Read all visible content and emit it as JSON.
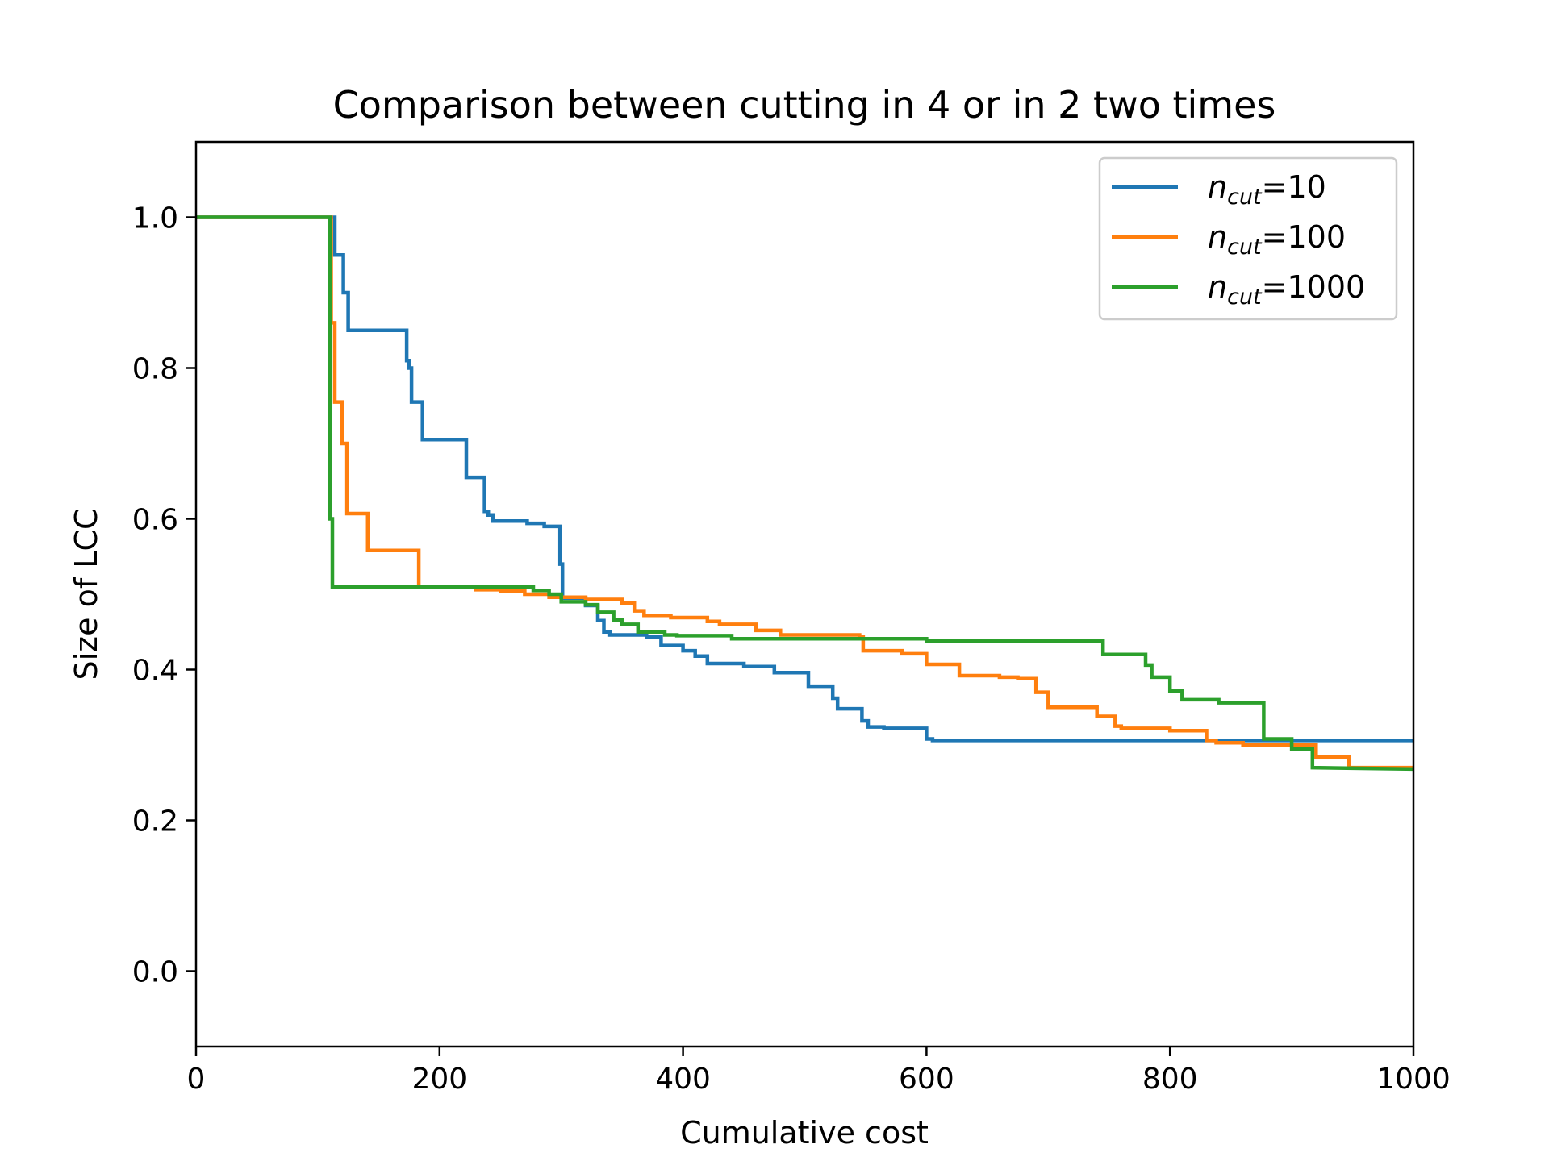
{
  "chart_data": {
    "type": "line",
    "title": "Comparison between cutting in 4 or in 2 two times",
    "xlabel": "Cumulative cost",
    "ylabel": "Size of LCC",
    "xlim": [
      0,
      1000
    ],
    "ylim": [
      -0.1,
      1.1
    ],
    "xticks": [
      0,
      200,
      400,
      600,
      800,
      1000
    ],
    "xtick_labels": [
      "0",
      "200",
      "400",
      "600",
      "800",
      "1000"
    ],
    "yticks": [
      0.0,
      0.2,
      0.4,
      0.6,
      0.8,
      1.0
    ],
    "ytick_labels": [
      "0.0",
      "0.2",
      "0.4",
      "0.6",
      "0.8",
      "1.0"
    ],
    "grid": false,
    "legend_position": "top-right",
    "series": [
      {
        "name": "n_cut=10",
        "legend_base": "n",
        "legend_sub": "cut",
        "legend_suffix": "=10",
        "color": "#1f77b4",
        "step": true,
        "points": [
          [
            0,
            1.0
          ],
          [
            114,
            1.0
          ],
          [
            114,
            0.95
          ],
          [
            121,
            0.95
          ],
          [
            121,
            0.9
          ],
          [
            125,
            0.9
          ],
          [
            125,
            0.85
          ],
          [
            173,
            0.85
          ],
          [
            173,
            0.81
          ],
          [
            175,
            0.81
          ],
          [
            175,
            0.8
          ],
          [
            177,
            0.8
          ],
          [
            177,
            0.755
          ],
          [
            186,
            0.755
          ],
          [
            186,
            0.705
          ],
          [
            222,
            0.705
          ],
          [
            222,
            0.655
          ],
          [
            237,
            0.655
          ],
          [
            237,
            0.61
          ],
          [
            240,
            0.61
          ],
          [
            240,
            0.605
          ],
          [
            244,
            0.605
          ],
          [
            244,
            0.597
          ],
          [
            272,
            0.597
          ],
          [
            272,
            0.594
          ],
          [
            286,
            0.594
          ],
          [
            286,
            0.59
          ],
          [
            299,
            0.59
          ],
          [
            299,
            0.54
          ],
          [
            301,
            0.54
          ],
          [
            301,
            0.495
          ],
          [
            320,
            0.495
          ],
          [
            320,
            0.485
          ],
          [
            330,
            0.485
          ],
          [
            330,
            0.465
          ],
          [
            335,
            0.465
          ],
          [
            335,
            0.45
          ],
          [
            340,
            0.45
          ],
          [
            340,
            0.446
          ],
          [
            370,
            0.446
          ],
          [
            370,
            0.443
          ],
          [
            382,
            0.443
          ],
          [
            382,
            0.432
          ],
          [
            400,
            0.432
          ],
          [
            400,
            0.425
          ],
          [
            410,
            0.425
          ],
          [
            410,
            0.418
          ],
          [
            420,
            0.418
          ],
          [
            420,
            0.408
          ],
          [
            450,
            0.408
          ],
          [
            450,
            0.404
          ],
          [
            475,
            0.404
          ],
          [
            475,
            0.396
          ],
          [
            503,
            0.396
          ],
          [
            503,
            0.378
          ],
          [
            523,
            0.378
          ],
          [
            523,
            0.362
          ],
          [
            527,
            0.362
          ],
          [
            527,
            0.348
          ],
          [
            547,
            0.348
          ],
          [
            547,
            0.332
          ],
          [
            552,
            0.332
          ],
          [
            552,
            0.324
          ],
          [
            565,
            0.324
          ],
          [
            565,
            0.322
          ],
          [
            600,
            0.322
          ],
          [
            600,
            0.308
          ],
          [
            605,
            0.308
          ],
          [
            605,
            0.306
          ],
          [
            1000,
            0.306
          ]
        ]
      },
      {
        "name": "n_cut=100",
        "legend_base": "n",
        "legend_sub": "cut",
        "legend_suffix": "=100",
        "color": "#ff7f0e",
        "step": true,
        "points": [
          [
            0,
            1.0
          ],
          [
            111,
            1.0
          ],
          [
            111,
            0.86
          ],
          [
            114,
            0.86
          ],
          [
            114,
            0.755
          ],
          [
            120,
            0.755
          ],
          [
            120,
            0.7
          ],
          [
            124,
            0.7
          ],
          [
            124,
            0.607
          ],
          [
            141,
            0.607
          ],
          [
            141,
            0.558
          ],
          [
            183,
            0.558
          ],
          [
            183,
            0.51
          ],
          [
            230,
            0.51
          ],
          [
            230,
            0.506
          ],
          [
            250,
            0.506
          ],
          [
            250,
            0.504
          ],
          [
            270,
            0.504
          ],
          [
            270,
            0.5
          ],
          [
            290,
            0.5
          ],
          [
            290,
            0.496
          ],
          [
            320,
            0.496
          ],
          [
            320,
            0.493
          ],
          [
            350,
            0.493
          ],
          [
            350,
            0.488
          ],
          [
            360,
            0.488
          ],
          [
            360,
            0.478
          ],
          [
            368,
            0.478
          ],
          [
            368,
            0.472
          ],
          [
            390,
            0.472
          ],
          [
            390,
            0.469
          ],
          [
            420,
            0.469
          ],
          [
            420,
            0.464
          ],
          [
            430,
            0.464
          ],
          [
            430,
            0.46
          ],
          [
            460,
            0.46
          ],
          [
            460,
            0.452
          ],
          [
            480,
            0.452
          ],
          [
            480,
            0.446
          ],
          [
            545,
            0.446
          ],
          [
            545,
            0.443
          ],
          [
            548,
            0.443
          ],
          [
            548,
            0.425
          ],
          [
            580,
            0.425
          ],
          [
            580,
            0.421
          ],
          [
            600,
            0.421
          ],
          [
            600,
            0.407
          ],
          [
            627,
            0.407
          ],
          [
            627,
            0.392
          ],
          [
            660,
            0.392
          ],
          [
            660,
            0.39
          ],
          [
            675,
            0.39
          ],
          [
            675,
            0.388
          ],
          [
            690,
            0.388
          ],
          [
            690,
            0.37
          ],
          [
            700,
            0.37
          ],
          [
            700,
            0.35
          ],
          [
            740,
            0.35
          ],
          [
            740,
            0.338
          ],
          [
            755,
            0.338
          ],
          [
            755,
            0.325
          ],
          [
            760,
            0.325
          ],
          [
            760,
            0.322
          ],
          [
            800,
            0.322
          ],
          [
            800,
            0.319
          ],
          [
            830,
            0.319
          ],
          [
            830,
            0.306
          ],
          [
            838,
            0.306
          ],
          [
            838,
            0.303
          ],
          [
            860,
            0.303
          ],
          [
            860,
            0.3
          ],
          [
            920,
            0.3
          ],
          [
            920,
            0.284
          ],
          [
            947,
            0.284
          ],
          [
            947,
            0.27
          ],
          [
            1000,
            0.27
          ]
        ]
      },
      {
        "name": "n_cut=1000",
        "legend_base": "n",
        "legend_sub": "cut",
        "legend_suffix": "=1000",
        "color": "#2ca02c",
        "step": true,
        "points": [
          [
            0,
            1.0
          ],
          [
            110,
            1.0
          ],
          [
            110,
            0.6
          ],
          [
            112,
            0.6
          ],
          [
            112,
            0.51
          ],
          [
            277,
            0.51
          ],
          [
            277,
            0.505
          ],
          [
            290,
            0.505
          ],
          [
            290,
            0.5
          ],
          [
            300,
            0.5
          ],
          [
            300,
            0.49
          ],
          [
            320,
            0.49
          ],
          [
            320,
            0.486
          ],
          [
            330,
            0.486
          ],
          [
            330,
            0.476
          ],
          [
            343,
            0.476
          ],
          [
            343,
            0.466
          ],
          [
            350,
            0.466
          ],
          [
            350,
            0.46
          ],
          [
            363,
            0.46
          ],
          [
            363,
            0.45
          ],
          [
            385,
            0.45
          ],
          [
            385,
            0.446
          ],
          [
            395,
            0.446
          ],
          [
            395,
            0.445
          ],
          [
            440,
            0.445
          ],
          [
            440,
            0.441
          ],
          [
            600,
            0.441
          ],
          [
            600,
            0.438
          ],
          [
            745,
            0.438
          ],
          [
            745,
            0.42
          ],
          [
            780,
            0.42
          ],
          [
            780,
            0.406
          ],
          [
            785,
            0.406
          ],
          [
            785,
            0.39
          ],
          [
            800,
            0.39
          ],
          [
            800,
            0.372
          ],
          [
            810,
            0.372
          ],
          [
            810,
            0.36
          ],
          [
            840,
            0.36
          ],
          [
            840,
            0.356
          ],
          [
            877,
            0.356
          ],
          [
            877,
            0.308
          ],
          [
            900,
            0.308
          ],
          [
            900,
            0.295
          ],
          [
            917,
            0.295
          ],
          [
            917,
            0.27
          ],
          [
            1000,
            0.268
          ]
        ]
      }
    ]
  }
}
